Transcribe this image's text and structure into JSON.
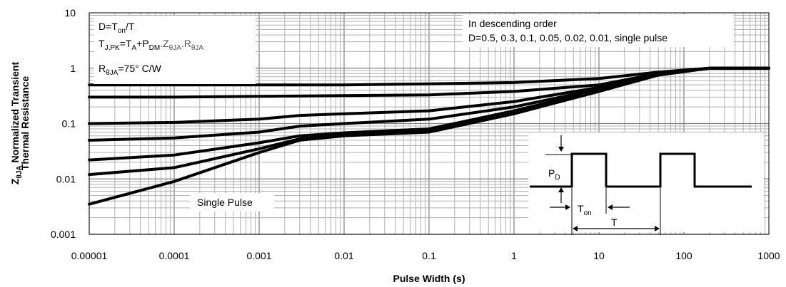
{
  "chart_data": {
    "type": "line",
    "xscale": "log",
    "yscale": "log",
    "xlim": [
      1e-05,
      1000
    ],
    "ylim": [
      0.001,
      10
    ],
    "grid": true,
    "xlabel": "Pulse Width (s)",
    "ylabel_line1": "Z",
    "ylabel_sub": "θJA",
    "ylabel_rest": " Normalized Transient",
    "ylabel_line2": "Thermal Resistance",
    "x_ticks": [
      "0.00001",
      "0.0001",
      "0.001",
      "0.01",
      "0.1",
      "1",
      "10",
      "100",
      "1000"
    ],
    "y_ticks": [
      "10",
      "1",
      "0.1",
      "0.01",
      "0.001"
    ],
    "series": [
      {
        "name": "0.5",
        "x": [
          1e-05,
          0.0001,
          0.001,
          0.01,
          0.1,
          1,
          10,
          50,
          200,
          1000
        ],
        "y": [
          0.5,
          0.5,
          0.5,
          0.5,
          0.52,
          0.55,
          0.65,
          0.85,
          1.0,
          1.0
        ]
      },
      {
        "name": "0.3",
        "x": [
          1e-05,
          0.0001,
          0.001,
          0.01,
          0.1,
          1,
          10,
          50,
          200,
          1000
        ],
        "y": [
          0.3,
          0.3,
          0.31,
          0.32,
          0.33,
          0.38,
          0.5,
          0.8,
          1.0,
          1.0
        ]
      },
      {
        "name": "0.1",
        "x": [
          1e-05,
          0.0001,
          0.001,
          0.003,
          0.01,
          0.1,
          1,
          10,
          50,
          200,
          1000
        ],
        "y": [
          0.1,
          0.105,
          0.12,
          0.14,
          0.15,
          0.17,
          0.25,
          0.45,
          0.8,
          1.0,
          1.0
        ]
      },
      {
        "name": "0.05",
        "x": [
          1e-05,
          0.0001,
          0.001,
          0.003,
          0.01,
          0.1,
          1,
          10,
          50,
          200,
          1000
        ],
        "y": [
          0.05,
          0.055,
          0.07,
          0.09,
          0.1,
          0.12,
          0.2,
          0.42,
          0.78,
          1.0,
          1.0
        ]
      },
      {
        "name": "0.02",
        "x": [
          1e-05,
          0.0001,
          0.001,
          0.003,
          0.01,
          0.1,
          1,
          10,
          50,
          200,
          1000
        ],
        "y": [
          0.022,
          0.027,
          0.045,
          0.06,
          0.068,
          0.08,
          0.17,
          0.4,
          0.77,
          1.0,
          1.0
        ]
      },
      {
        "name": "0.01",
        "x": [
          1e-05,
          0.0001,
          0.001,
          0.003,
          0.01,
          0.1,
          1,
          10,
          50,
          200,
          1000
        ],
        "y": [
          0.012,
          0.016,
          0.035,
          0.053,
          0.062,
          0.072,
          0.16,
          0.39,
          0.76,
          1.0,
          1.0
        ]
      },
      {
        "name": "single pulse",
        "x": [
          1e-05,
          0.0001,
          0.001,
          0.003,
          0.01,
          0.1,
          1,
          10,
          50,
          200,
          1000
        ],
        "y": [
          0.0035,
          0.009,
          0.03,
          0.05,
          0.06,
          0.07,
          0.15,
          0.38,
          0.75,
          1.0,
          1.0
        ]
      }
    ],
    "annotations": {
      "box1": {
        "line1_a": "D=T",
        "line1_sub": "on",
        "line1_b": "/T",
        "line2_a": "T",
        "line2_sub1": "J,PK",
        "line2_b": "=T",
        "line2_sub2": "A",
        "line2_c": "+P",
        "line2_sub3": "DM",
        "line2_d": ".Z",
        "line2_sub4": "θJA",
        "line2_e": ".R",
        "line2_sub5": "θJA",
        "line3_a": "R",
        "line3_sub": "θJA",
        "line3_b": "=75° C/W"
      },
      "box2": {
        "line1": "In descending order",
        "line2": "D=0.5, 0.3, 0.1, 0.05, 0.02, 0.01, single pulse"
      },
      "single_pulse_label": "Single Pulse",
      "pulse_diagram": {
        "pd_a": "P",
        "pd_sub": "D",
        "ton_a": "T",
        "ton_sub": "on",
        "t_label": "T"
      }
    }
  }
}
